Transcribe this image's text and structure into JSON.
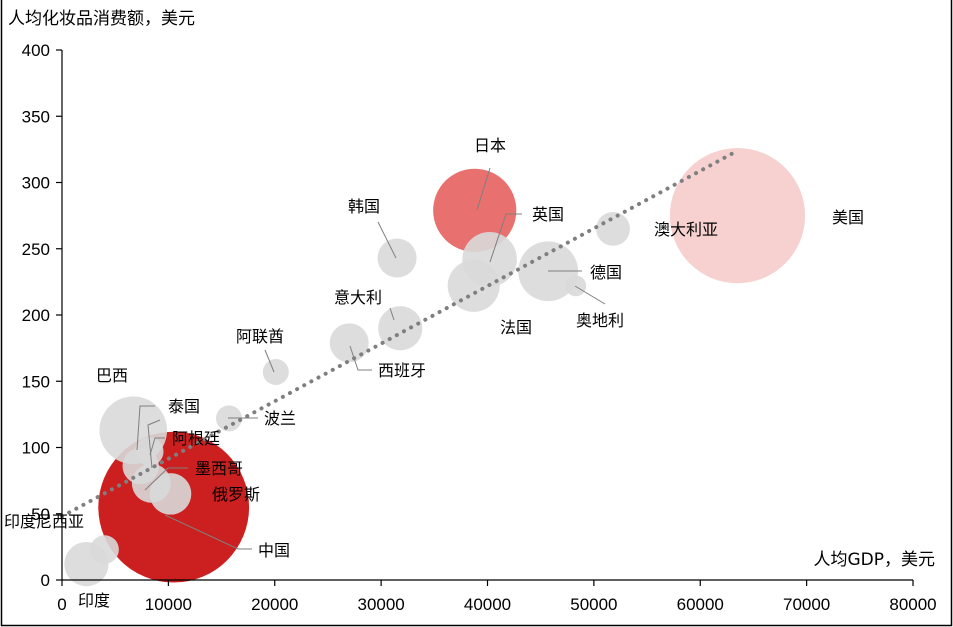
{
  "chart_data": {
    "type": "scatter",
    "title": "",
    "ylabel": "人均化妆品消费额，美元",
    "xlabel": "人均GDP，美元",
    "xlim": [
      0,
      80000
    ],
    "ylim": [
      0,
      400
    ],
    "x_ticks": [
      "0",
      "10000",
      "20000",
      "30000",
      "40000",
      "50000",
      "60000",
      "70000",
      "80000"
    ],
    "y_ticks": [
      "0",
      "50",
      "100",
      "150",
      "200",
      "250",
      "300",
      "350",
      "400"
    ],
    "grid": false,
    "legend": "none",
    "colors": {
      "highlight_dark": "#cc1f1f",
      "highlight_mid": "#e8706e",
      "highlight_light": "#f6d1d0",
      "neutral": "#d9d9d9",
      "trendline": "#7f7f7f",
      "leader": "#7f7f7f"
    },
    "trendline": {
      "style": "dotted",
      "x": [
        0,
        63500
      ],
      "y": [
        48,
        324
      ]
    },
    "points": [
      {
        "name": "印度尼西亚",
        "x": 4000,
        "y": 23,
        "size": 1.1,
        "color": "neutral"
      },
      {
        "name": "印度",
        "x": 2300,
        "y": 12,
        "size": 1.7,
        "color": "neutral"
      },
      {
        "name": "中国",
        "x": 10500,
        "y": 55,
        "size": 5.8,
        "color": "highlight_dark"
      },
      {
        "name": "俄罗斯",
        "x": 10200,
        "y": 65,
        "size": 1.6,
        "color": "neutral"
      },
      {
        "name": "墨西哥",
        "x": 8400,
        "y": 73,
        "size": 1.5,
        "color": "neutral"
      },
      {
        "name": "阿根廷",
        "x": 8200,
        "y": 97,
        "size": 1.1,
        "color": "neutral"
      },
      {
        "name": "巴西",
        "x": 6700,
        "y": 113,
        "size": 2.6,
        "color": "neutral"
      },
      {
        "name": "泰国",
        "x": 7400,
        "y": 86,
        "size": 1.4,
        "color": "neutral"
      },
      {
        "name": "波兰",
        "x": 15700,
        "y": 122,
        "size": 1.0,
        "color": "neutral"
      },
      {
        "name": "阿联酋",
        "x": 20100,
        "y": 157,
        "size": 1.0,
        "color": "neutral"
      },
      {
        "name": "西班牙",
        "x": 27000,
        "y": 179,
        "size": 1.5,
        "color": "neutral"
      },
      {
        "name": "意大利",
        "x": 31800,
        "y": 190,
        "size": 1.7,
        "color": "neutral"
      },
      {
        "name": "韩国",
        "x": 31500,
        "y": 243,
        "size": 1.5,
        "color": "neutral"
      },
      {
        "name": "日本",
        "x": 38800,
        "y": 279,
        "size": 3.2,
        "color": "highlight_mid"
      },
      {
        "name": "英国",
        "x": 40200,
        "y": 242,
        "size": 2.1,
        "color": "neutral"
      },
      {
        "name": "法国",
        "x": 38700,
        "y": 222,
        "size": 2.0,
        "color": "neutral"
      },
      {
        "name": "德国",
        "x": 45700,
        "y": 233,
        "size": 2.3,
        "color": "neutral"
      },
      {
        "name": "奥地利",
        "x": 48300,
        "y": 222,
        "size": 0.8,
        "color": "neutral"
      },
      {
        "name": "澳大利亚",
        "x": 51800,
        "y": 265,
        "size": 1.3,
        "color": "neutral"
      },
      {
        "name": "美国",
        "x": 63500,
        "y": 275,
        "size": 5.2,
        "color": "highlight_light"
      }
    ]
  }
}
